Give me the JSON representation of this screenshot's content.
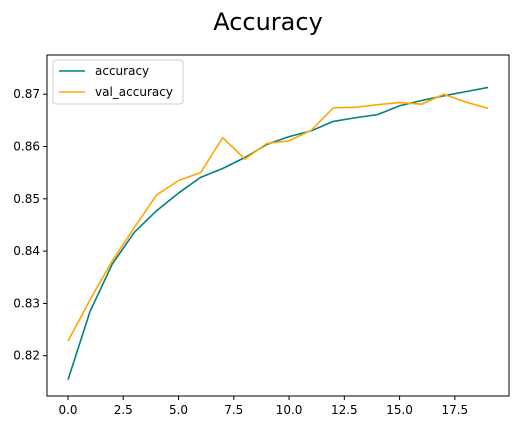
{
  "chart_data": {
    "type": "line",
    "title": "Accuracy",
    "xlabel": "",
    "ylabel": "",
    "x": [
      0,
      1,
      2,
      3,
      4,
      5,
      6,
      7,
      8,
      9,
      10,
      11,
      12,
      13,
      14,
      15,
      16,
      17,
      18,
      19
    ],
    "xlim": [
      -0.95,
      19.95
    ],
    "ylim": [
      0.8123,
      0.8775
    ],
    "xticks": [
      0.0,
      2.5,
      5.0,
      7.5,
      10.0,
      12.5,
      15.0,
      17.5
    ],
    "xtick_labels": [
      "0.0",
      "2.5",
      "5.0",
      "7.5",
      "10.0",
      "12.5",
      "15.0",
      "17.5"
    ],
    "yticks": [
      0.82,
      0.83,
      0.84,
      0.85,
      0.86,
      0.87
    ],
    "ytick_labels": [
      "0.82",
      "0.83",
      "0.84",
      "0.85",
      "0.86",
      "0.87"
    ],
    "grid": false,
    "legend_position": "top-left",
    "series": [
      {
        "name": "accuracy",
        "color": "#008080",
        "values": [
          0.8154,
          0.8285,
          0.8375,
          0.8436,
          0.8477,
          0.8511,
          0.8541,
          0.8558,
          0.8579,
          0.8604,
          0.8619,
          0.863,
          0.8648,
          0.8655,
          0.8661,
          0.8678,
          0.8688,
          0.8697,
          0.8705,
          0.8713
        ]
      },
      {
        "name": "val_accuracy",
        "color": "#ffa500",
        "values": [
          0.8228,
          0.8307,
          0.8381,
          0.8445,
          0.8507,
          0.8535,
          0.855,
          0.8617,
          0.8576,
          0.8606,
          0.8611,
          0.8631,
          0.8674,
          0.8675,
          0.868,
          0.8684,
          0.8681,
          0.87,
          0.8685,
          0.8673
        ]
      }
    ]
  }
}
